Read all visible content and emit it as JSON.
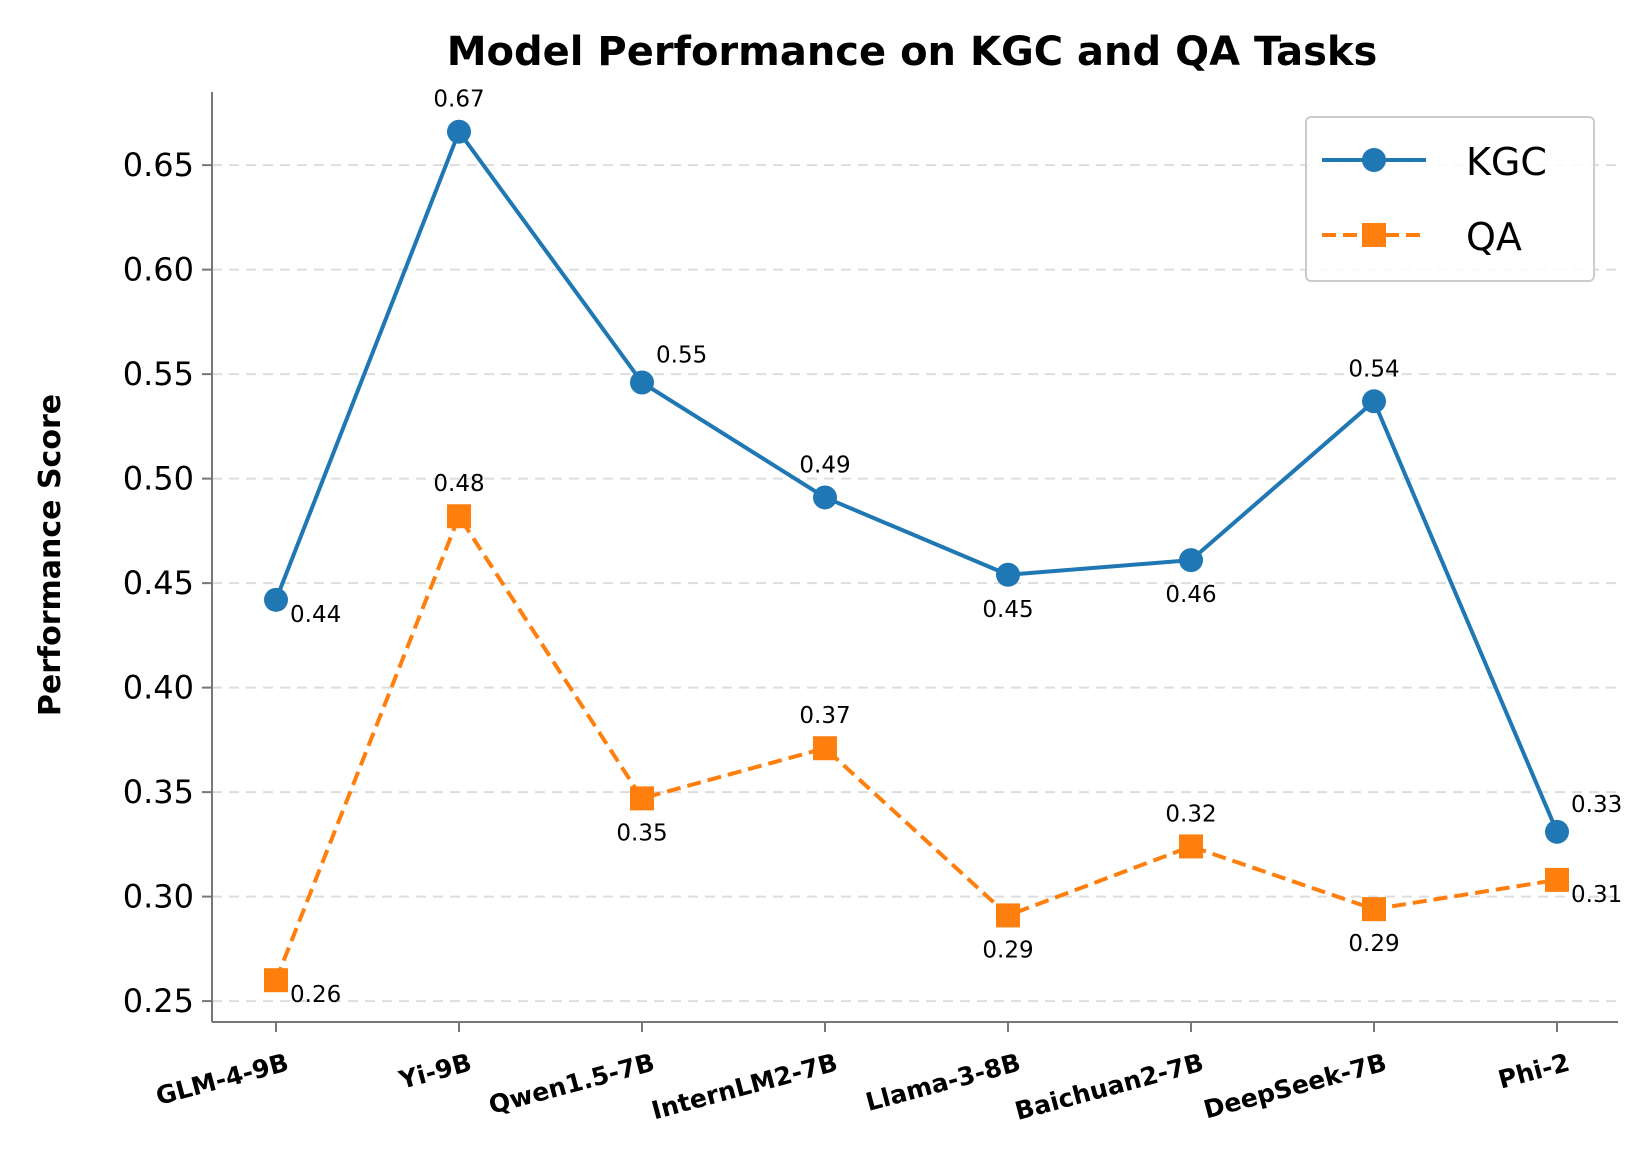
{
  "chart_data": {
    "type": "line",
    "title": "Model Performance on KGC and QA Tasks",
    "xlabel": "",
    "ylabel": "Performance Score",
    "ylim": [
      0.24,
      0.685
    ],
    "yticks": [
      0.25,
      0.3,
      0.35,
      0.4,
      0.45,
      0.5,
      0.55,
      0.6,
      0.65
    ],
    "ytick_labels": [
      "0.25",
      "0.30",
      "0.35",
      "0.40",
      "0.45",
      "0.50",
      "0.55",
      "0.60",
      "0.65"
    ],
    "grid": "horizontal dashed",
    "legend_position": "top-right",
    "categories": [
      "GLM-4-9B",
      "Yi-9B",
      "Qwen1.5-7B",
      "InternLM2-7B",
      "Llama-3-8B",
      "Baichuan2-7B",
      "DeepSeek-7B",
      "Phi-2"
    ],
    "series": [
      {
        "name": "KGC",
        "color": "#1f77b4",
        "style": "solid",
        "marker": "circle",
        "values": [
          0.442,
          0.666,
          0.546,
          0.491,
          0.454,
          0.461,
          0.537,
          0.331
        ],
        "labels": [
          "0.44",
          "0.67",
          "0.55",
          "0.49",
          "0.45",
          "0.46",
          "0.54",
          "0.33"
        ],
        "label_pos": [
          "below-right",
          "above",
          "above-right",
          "above",
          "below",
          "below",
          "above",
          "above-right"
        ]
      },
      {
        "name": "QA",
        "color": "#ff7f0e",
        "style": "dashed",
        "marker": "square",
        "values": [
          0.26,
          0.482,
          0.347,
          0.371,
          0.291,
          0.324,
          0.294,
          0.308
        ],
        "labels": [
          "0.26",
          "0.48",
          "0.35",
          "0.37",
          "0.29",
          "0.32",
          "0.29",
          "0.31"
        ],
        "label_pos": [
          "below-right",
          "above",
          "below",
          "above",
          "below",
          "above",
          "below",
          "below-right"
        ]
      }
    ]
  }
}
